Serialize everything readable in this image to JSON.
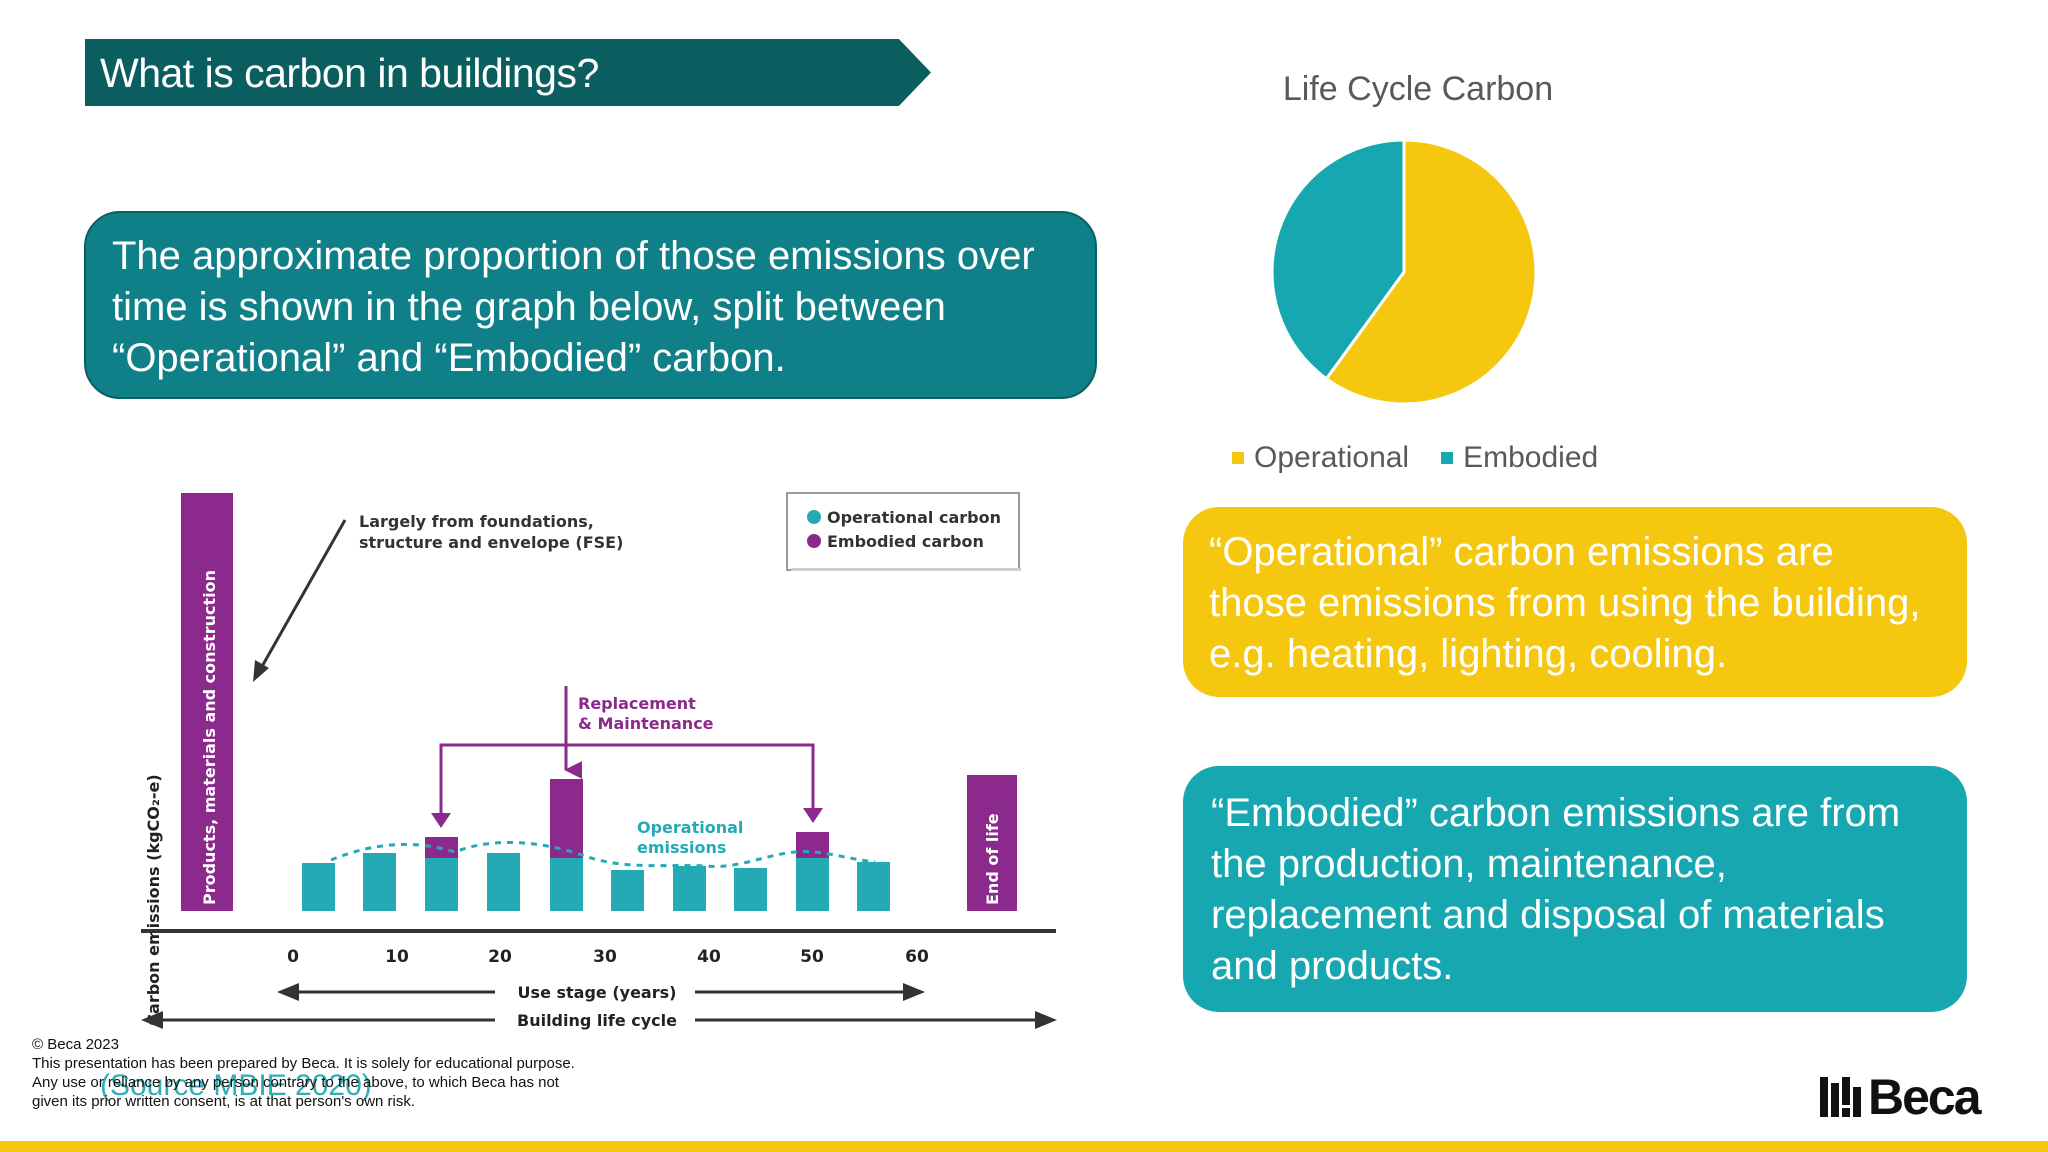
{
  "slide": {
    "title": "What is carbon in buildings?",
    "intro": "The approximate proportion of those emissions over time is shown in the graph below, split between “Operational” and “Embodied” carbon.",
    "operational_text": "“Operational” carbon emissions are those emissions from using the building, e.g. heating, lighting, cooling.",
    "embodied_text": "“Embodied” carbon emissions are from the production, maintenance, replacement and disposal of materials and products.",
    "source": "(Source MBIE 2020)"
  },
  "chart_data": {
    "type": "pie",
    "title": "Life Cycle Carbon",
    "legend_position": "bottom",
    "slices": [
      {
        "label": "Operational",
        "value": 60,
        "color": "#f5c80f"
      },
      {
        "label": "Embodied",
        "value": 40,
        "color": "#16a7b0"
      }
    ]
  },
  "diagram": {
    "y_axis_label": "Carbon emissions  (kgCO₂-e)",
    "start_bar_label": "Products, materials and construction",
    "end_bar_label": "End of life",
    "fse_note_line1": "Largely from foundations,",
    "fse_note_line2": "structure and envelope (FSE)",
    "legend_operational": "Operational carbon",
    "legend_embodied": "Embodied carbon",
    "replacement_line1": "Replacement",
    "replacement_line2": "& Maintenance",
    "operational_line1": "Operational",
    "operational_line2": "emissions",
    "x_ticks": [
      "0",
      "10",
      "20",
      "30",
      "40",
      "50",
      "60"
    ],
    "use_stage_label": "Use stage (years)",
    "life_cycle_label": "Building life cycle",
    "colors": {
      "operational": "#24aab5",
      "embodied": "#8b2a8c"
    }
  },
  "footer": {
    "copyright": "© Beca 2023",
    "disclaimer_line1": "This presentation has been prepared by Beca. It is solely for  educational purpose.",
    "disclaimer_line2": "Any use or reliance by any person contrary to the above, to which Beca has not",
    "disclaimer_line3": "given its prior written consent, is at that person's own risk.",
    "logo_text": "Beca"
  }
}
